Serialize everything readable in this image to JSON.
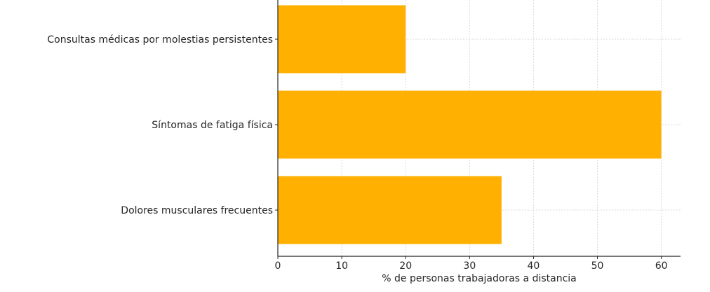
{
  "chart_data": {
    "type": "bar",
    "orientation": "horizontal",
    "title": "",
    "xlabel": "% de personas trabajadoras a distancia",
    "ylabel": "",
    "categories": [
      "Dolores musculares frecuentes",
      "Síntomas de fatiga física",
      "Consultas médicas por molestias persistentes"
    ],
    "values": [
      35,
      60,
      20
    ],
    "xlim": [
      0,
      63
    ],
    "xticks": [
      0,
      10,
      20,
      30,
      40,
      50,
      60
    ],
    "grid": true,
    "legend": "none",
    "bar_color": "#FFB000"
  }
}
